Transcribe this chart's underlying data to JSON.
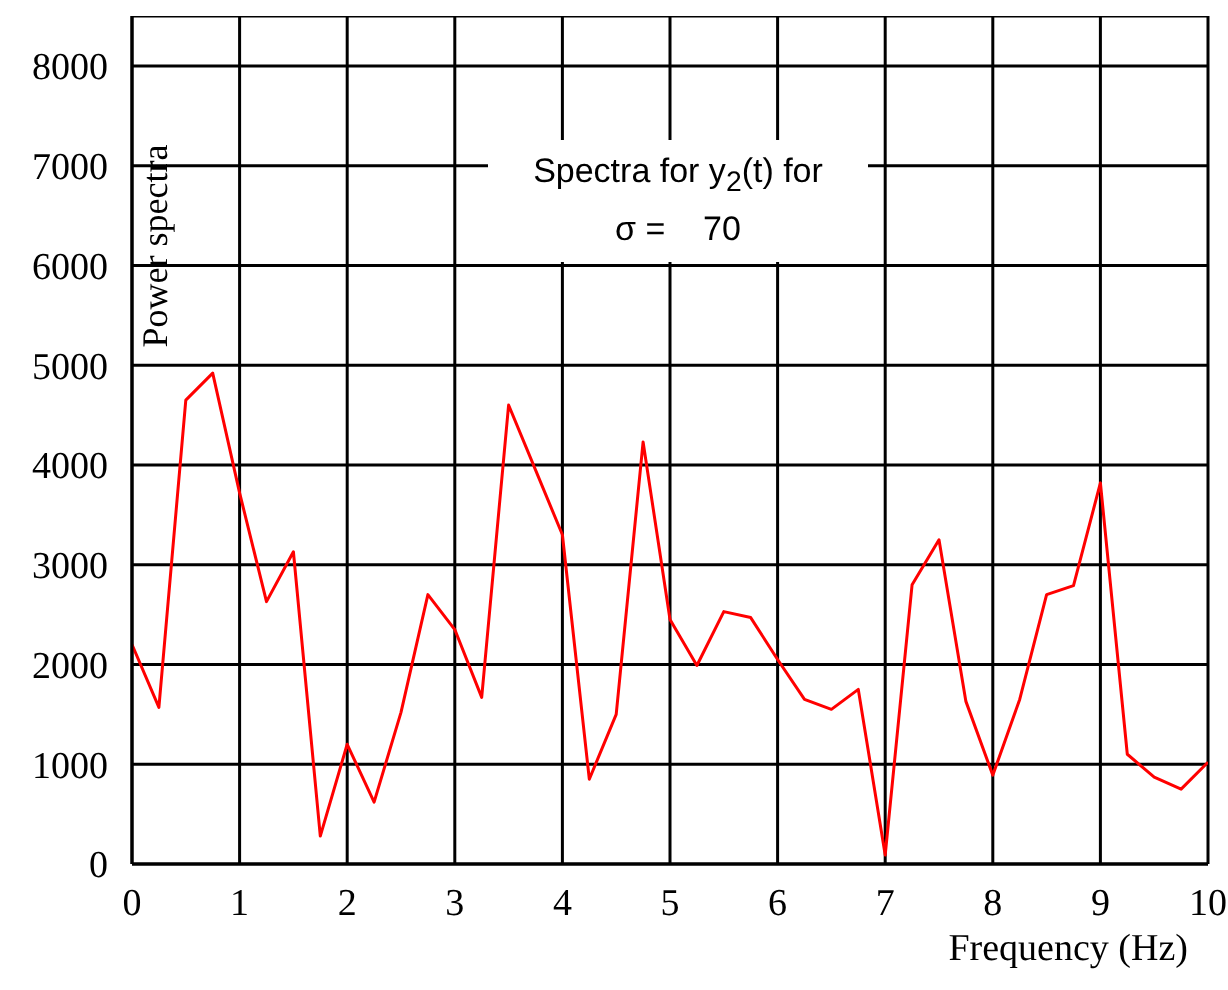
{
  "chart_data": {
    "type": "line",
    "title": "Spectra for y$_{2}$(t) for",
    "subtitle": "σ =    70",
    "xlabel": "Frequency (Hz)",
    "ylabel": "Power spectra",
    "x": [
      0,
      0.25,
      0.5,
      0.75,
      1,
      1.25,
      1.5,
      1.75,
      2,
      2.25,
      2.5,
      2.75,
      3,
      3.25,
      3.5,
      3.75,
      4,
      4.25,
      4.5,
      4.75,
      5,
      5.25,
      5.5,
      5.75,
      6,
      6.25,
      6.5,
      6.75,
      7,
      7.25,
      7.5,
      7.75,
      8,
      8.25,
      8.5,
      8.75,
      9,
      9.25,
      9.5,
      9.75,
      10
    ],
    "series": [
      {
        "color": "#ff0000",
        "values": [
          2200,
          1570,
          4650,
          4920,
          3720,
          2630,
          3130,
          280,
          1200,
          620,
          1520,
          2700,
          2350,
          1670,
          4600,
          3950,
          3300,
          850,
          1500,
          4230,
          2450,
          1990,
          2530,
          2470,
          2050,
          1650,
          1550,
          1750,
          90,
          2800,
          3250,
          1630,
          890,
          1650,
          2700,
          2790,
          3820,
          1100,
          870,
          750,
          1020
        ]
      }
    ],
    "xlim": [
      0,
      10
    ],
    "xticks": [
      0,
      1,
      2,
      3,
      4,
      5,
      6,
      7,
      8,
      9,
      10
    ],
    "ylim": [
      0,
      8500
    ],
    "yticks": [
      0,
      1000,
      2000,
      3000,
      4000,
      5000,
      6000,
      7000,
      8000
    ],
    "grid": true,
    "marker": "none",
    "line_style": "solid"
  }
}
